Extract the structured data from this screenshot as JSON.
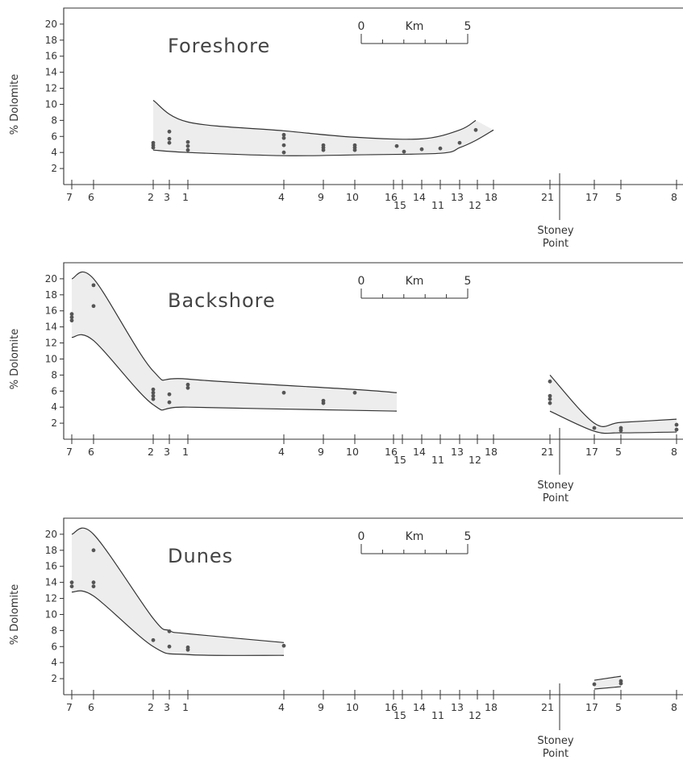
{
  "chart_data": [
    {
      "type": "scatter",
      "title": "Foreshore",
      "ylabel": "% Dolomite",
      "ylim": [
        0,
        22
      ],
      "yticks": [
        "2",
        "4",
        "6",
        "8",
        "10",
        "12",
        "14",
        "16",
        "18",
        "20"
      ],
      "x_stations": [
        "7",
        "6",
        "2",
        "3",
        "1",
        "4",
        "9",
        "10",
        "16",
        "15",
        "14",
        "11",
        "13",
        "12",
        "18",
        "21",
        "17",
        "5",
        "8"
      ],
      "landmark": "Stoney Point",
      "scale_bar": {
        "start": "0",
        "unit": "Km",
        "end": "5"
      },
      "band": {
        "upper": [
          [
            "2",
            10.5
          ],
          [
            "1",
            7.8
          ],
          [
            "4",
            6.7
          ],
          [
            "10",
            5.9
          ],
          [
            "14",
            5.7
          ],
          [
            "13",
            6.8
          ],
          [
            "12",
            8
          ]
        ],
        "lower": [
          [
            "2",
            4.3
          ],
          [
            "1",
            4.0
          ],
          [
            "4",
            3.6
          ],
          [
            "10",
            3.7
          ],
          [
            "11",
            3.9
          ],
          [
            "13",
            4.6
          ],
          [
            "12",
            5.5
          ],
          [
            "18",
            6.8
          ]
        ]
      },
      "points": [
        [
          "2",
          4.6
        ],
        [
          "2",
          4.9
        ],
        [
          "2",
          5.2
        ],
        [
          "3",
          5.2
        ],
        [
          "3",
          5.7
        ],
        [
          "3",
          6.6
        ],
        [
          "1",
          4.3
        ],
        [
          "1",
          4.8
        ],
        [
          "1",
          5.3
        ],
        [
          "4",
          4.0
        ],
        [
          "4",
          4.9
        ],
        [
          "4",
          5.8
        ],
        [
          "4",
          6.2
        ],
        [
          "9",
          4.3
        ],
        [
          "9",
          4.6
        ],
        [
          "9",
          4.9
        ],
        [
          "10",
          4.3
        ],
        [
          "10",
          4.6
        ],
        [
          "10",
          4.9
        ],
        [
          "16",
          4.8
        ],
        [
          "15",
          4.1
        ],
        [
          "14",
          4.4
        ],
        [
          "11",
          4.5
        ],
        [
          "13",
          5.2
        ],
        [
          "12",
          6.8
        ]
      ]
    },
    {
      "type": "scatter",
      "title": "Backshore",
      "ylabel": "% Dolomite",
      "ylim": [
        0,
        22
      ],
      "yticks": [
        "2",
        "4",
        "6",
        "8",
        "10",
        "12",
        "14",
        "16",
        "18",
        "20"
      ],
      "x_stations": [
        "7",
        "6",
        "2",
        "3",
        "1",
        "4",
        "9",
        "10",
        "16",
        "15",
        "14",
        "11",
        "13",
        "12",
        "18",
        "21",
        "17",
        "5",
        "8"
      ],
      "landmark": "Stoney Point",
      "scale_bar": {
        "start": "0",
        "unit": "Km",
        "end": "5"
      },
      "band": {
        "upper": [
          [
            "7",
            20
          ],
          [
            "6",
            20
          ],
          [
            "2",
            8.5
          ],
          [
            "1",
            7.5
          ],
          [
            "10",
            6.2
          ],
          [
            "16",
            5.8
          ]
        ],
        "lower": [
          [
            "7",
            12.7
          ],
          [
            "6",
            12.3
          ],
          [
            "2",
            4.3
          ],
          [
            "1",
            4.0
          ],
          [
            "10",
            3.6
          ],
          [
            "16",
            3.5
          ]
        ]
      },
      "band2": {
        "upper": [
          [
            "21",
            8
          ],
          [
            "17",
            2
          ],
          [
            "5",
            2.1
          ],
          [
            "8",
            2.5
          ]
        ],
        "lower": [
          [
            "21",
            3.5
          ],
          [
            "17",
            1.0
          ],
          [
            "5",
            0.8
          ],
          [
            "8",
            0.9
          ]
        ]
      },
      "points": [
        [
          "7",
          14.8
        ],
        [
          "7",
          15.2
        ],
        [
          "7",
          15.6
        ],
        [
          "6",
          16.6
        ],
        [
          "6",
          19.2
        ],
        [
          "2",
          5.0
        ],
        [
          "2",
          5.4
        ],
        [
          "2",
          5.8
        ],
        [
          "2",
          6.2
        ],
        [
          "3",
          4.6
        ],
        [
          "3",
          5.6
        ],
        [
          "1",
          6.4
        ],
        [
          "1",
          6.8
        ],
        [
          "4",
          5.8
        ],
        [
          "9",
          4.5
        ],
        [
          "9",
          4.8
        ],
        [
          "10",
          5.8
        ],
        [
          "21",
          4.5
        ],
        [
          "21",
          5.0
        ],
        [
          "21",
          5.4
        ],
        [
          "21",
          7.2
        ],
        [
          "17",
          1.4
        ],
        [
          "5",
          1.1
        ],
        [
          "5",
          1.4
        ],
        [
          "8",
          1.2
        ],
        [
          "8",
          1.8
        ]
      ]
    },
    {
      "type": "scatter",
      "title": "Dunes",
      "ylabel": "% Dolomite",
      "ylim": [
        0,
        22
      ],
      "yticks": [
        "2",
        "4",
        "6",
        "8",
        "10",
        "12",
        "14",
        "16",
        "18",
        "20"
      ],
      "x_stations": [
        "7",
        "6",
        "2",
        "3",
        "1",
        "4",
        "9",
        "10",
        "16",
        "15",
        "14",
        "11",
        "13",
        "12",
        "18",
        "21",
        "17",
        "5",
        "8"
      ],
      "landmark": "Stoney Point",
      "scale_bar": {
        "start": "0",
        "unit": "Km",
        "end": "5"
      },
      "band": {
        "upper": [
          [
            "7",
            20
          ],
          [
            "6",
            20
          ],
          [
            "2",
            9.5
          ],
          [
            "3",
            8
          ],
          [
            "1",
            7.6
          ],
          [
            "4",
            6.5
          ]
        ],
        "lower": [
          [
            "7",
            12.8
          ],
          [
            "6",
            12.3
          ],
          [
            "2",
            6.0
          ],
          [
            "1",
            5.0
          ],
          [
            "4",
            4.9
          ]
        ]
      },
      "band2": {
        "upper": [
          [
            "17",
            1.8
          ],
          [
            "5",
            2.3
          ]
        ],
        "lower": [
          [
            "17",
            0.7
          ],
          [
            "5",
            1.0
          ]
        ]
      },
      "points": [
        [
          "7",
          13.5
        ],
        [
          "7",
          14.0
        ],
        [
          "6",
          13.5
        ],
        [
          "6",
          14.0
        ],
        [
          "6",
          18.0
        ],
        [
          "2",
          6.8
        ],
        [
          "3",
          6.0
        ],
        [
          "3",
          7.9
        ],
        [
          "1",
          5.6
        ],
        [
          "1",
          5.9
        ],
        [
          "4",
          6.1
        ],
        [
          "17",
          1.3
        ],
        [
          "5",
          1.4
        ],
        [
          "5",
          1.7
        ]
      ]
    }
  ]
}
